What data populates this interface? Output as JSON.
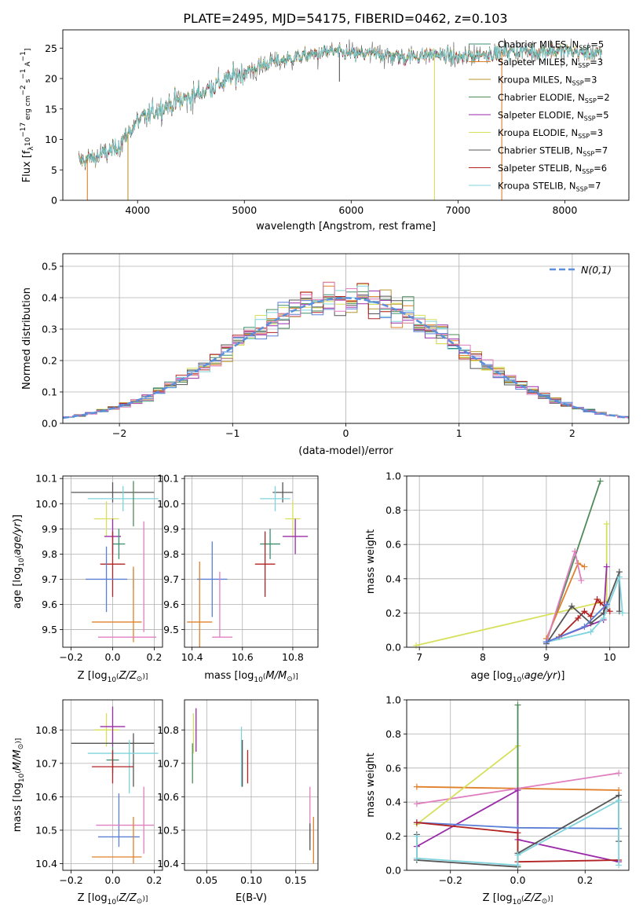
{
  "figure": {
    "title": "PLATE=2495, MJD=54175, FIBERID=0462, z=0.103"
  },
  "colors": {
    "Chabrier MILES": "#3b8f6e",
    "Salpeter MILES": "#e0802a",
    "Kroupa MILES": "#b8962e",
    "Chabrier ELODIE": "#4f8a5a",
    "Salpeter ELODIE": "#9a2aa8",
    "Kroupa ELODIE": "#d6e05a",
    "Chabrier STELIB": "#555555",
    "Salpeter STELIB": "#b22222",
    "Kroupa STELIB": "#7fd3dc",
    "royal": "#5b7fd6",
    "pink": "#e07fc0",
    "gaussian": "#5b8fdc"
  },
  "legend_models": [
    {
      "name": "Chabrier MILES",
      "nssp": "5"
    },
    {
      "name": "Salpeter MILES",
      "nssp": "3"
    },
    {
      "name": "Kroupa MILES",
      "nssp": "3"
    },
    {
      "name": "Chabrier ELODIE",
      "nssp": "2"
    },
    {
      "name": "Salpeter ELODIE",
      "nssp": "5"
    },
    {
      "name": "Kroupa ELODIE",
      "nssp": "3"
    },
    {
      "name": "Chabrier STELIB",
      "nssp": "7"
    },
    {
      "name": "Salpeter STELIB",
      "nssp": "6"
    },
    {
      "name": "Kroupa STELIB",
      "nssp": "7"
    }
  ],
  "chart_data": [
    {
      "id": "spectrum",
      "type": "line",
      "xlabel": "wavelength [Angstrom, rest frame]",
      "ylabel": "Flux [f_λ 10^-17 erg cm^-2 s^-1 A^-1]",
      "xlim": [
        3300,
        8600
      ],
      "ylim": [
        0,
        28
      ],
      "xticks": [
        4000,
        5000,
        6000,
        7000,
        8000
      ],
      "yticks": [
        0,
        5,
        10,
        15,
        20,
        25
      ],
      "grid": false,
      "legend": "upper right",
      "continuum": [
        [
          3450,
          6.5
        ],
        [
          3600,
          7.0
        ],
        [
          3800,
          8.5
        ],
        [
          4000,
          13
        ],
        [
          4200,
          15
        ],
        [
          4500,
          17
        ],
        [
          4800,
          19.5
        ],
        [
          5000,
          21
        ],
        [
          5200,
          22.5
        ],
        [
          5500,
          23.5
        ],
        [
          5800,
          24.5
        ],
        [
          6000,
          24
        ],
        [
          6300,
          24
        ],
        [
          6500,
          23.5
        ],
        [
          6800,
          24
        ],
        [
          7000,
          23.5
        ],
        [
          7500,
          24.5
        ],
        [
          8000,
          24.5
        ],
        [
          8350,
          24
        ]
      ],
      "dips": [
        [
          3530,
          0
        ],
        [
          3910,
          0
        ],
        [
          5890,
          19.5
        ],
        [
          6780,
          0
        ],
        [
          7410,
          0
        ]
      ]
    },
    {
      "id": "residual_hist",
      "type": "line",
      "xlabel": "(data-model)/error",
      "ylabel": "Normed distribution",
      "xlim": [
        -2.5,
        2.5
      ],
      "ylim": [
        0,
        0.54
      ],
      "xticks": [
        -2,
        -1,
        0,
        1,
        2
      ],
      "yticks": [
        0.0,
        0.1,
        0.2,
        0.3,
        0.4,
        0.5
      ],
      "grid": true,
      "legend_label": "N(0,1)",
      "legend": "upper right"
    },
    {
      "id": "age_vs_Z",
      "type": "scatter",
      "xlabel": "Z [log10(Z/Z⊙)]",
      "ylabel": "age [log10(age/yr)]",
      "xlim": [
        -0.24,
        0.24
      ],
      "ylim": [
        9.43,
        10.11
      ],
      "xticks": [
        -0.2,
        0.0,
        0.2
      ],
      "yticks": [
        9.5,
        9.6,
        9.7,
        9.8,
        9.9,
        10.0,
        10.1
      ],
      "grid": true,
      "points": [
        {
          "model": "Chabrier STELIB",
          "x": 0.0,
          "xerr": 0.2,
          "y": 10.045,
          "yerr": 0.04
        },
        {
          "model": "Kroupa STELIB",
          "x": 0.05,
          "xerr": 0.17,
          "y": 10.02,
          "yerr": 0.05
        },
        {
          "model": "Chabrier ELODIE",
          "x": 0.1,
          "xerr": 0.0,
          "y": 10.0,
          "yerr": 0.09
        },
        {
          "model": "Kroupa ELODIE",
          "x": -0.03,
          "xerr": 0.06,
          "y": 9.94,
          "yerr": 0.07
        },
        {
          "model": "Salpeter ELODIE",
          "x": 0.0,
          "xerr": 0.04,
          "y": 9.87,
          "yerr": 0.07
        },
        {
          "model": "Chabrier MILES",
          "x": 0.03,
          "xerr": 0.03,
          "y": 9.84,
          "yerr": 0.06
        },
        {
          "model": "Salpeter STELIB",
          "x": 0.0,
          "xerr": 0.06,
          "y": 9.76,
          "yerr": 0.13
        },
        {
          "model": "royal",
          "x": -0.03,
          "xerr": 0.1,
          "y": 9.7,
          "yerr": 0.13
        },
        {
          "model": "Kroupa STELIB",
          "x": 0.1,
          "xerr": 0.0,
          "y": 9.7,
          "yerr": 0.04
        },
        {
          "model": "pink",
          "x": 0.15,
          "xerr": 0.0,
          "y": 9.71,
          "yerr": 0.22
        },
        {
          "model": "Salpeter MILES",
          "x": 0.02,
          "xerr": 0.12,
          "y": 9.53,
          "yerr": 0.0
        },
        {
          "model": "Salpeter MILES",
          "x": 0.1,
          "xerr": 0.0,
          "y": 9.6,
          "yerr": 0.15
        },
        {
          "model": "pink",
          "x": 0.07,
          "xerr": 0.14,
          "y": 9.47,
          "yerr": 0.0
        }
      ]
    },
    {
      "id": "age_vs_mass",
      "type": "scatter",
      "xlabel": "mass [log10(M/M⊙)]",
      "ylabel": "",
      "xlim": [
        10.37,
        10.9
      ],
      "ylim": [
        9.43,
        10.11
      ],
      "xticks": [
        10.4,
        10.6,
        10.8
      ],
      "yticks": [
        9.5,
        9.6,
        9.7,
        9.8,
        9.9,
        10.0,
        10.1
      ],
      "grid": true,
      "points": [
        {
          "model": "Chabrier STELIB",
          "x": 10.76,
          "xerr": 0.04,
          "y": 10.045,
          "yerr": 0.04
        },
        {
          "model": "Kroupa STELIB",
          "x": 10.73,
          "xerr": 0.06,
          "y": 10.02,
          "yerr": 0.05
        },
        {
          "model": "Kroupa ELODIE",
          "x": 10.8,
          "xerr": 0.03,
          "y": 9.94,
          "yerr": 0.07
        },
        {
          "model": "Salpeter ELODIE",
          "x": 10.81,
          "xerr": 0.05,
          "y": 9.87,
          "yerr": 0.07
        },
        {
          "model": "Chabrier MILES",
          "x": 10.71,
          "xerr": 0.04,
          "y": 9.84,
          "yerr": 0.06
        },
        {
          "model": "Salpeter STELIB",
          "x": 10.69,
          "xerr": 0.04,
          "y": 9.76,
          "yerr": 0.13
        },
        {
          "model": "royal",
          "x": 10.48,
          "xerr": 0.06,
          "y": 9.7,
          "yerr": 0.15
        },
        {
          "model": "pink",
          "x": 10.51,
          "xerr": 0.0,
          "y": 9.6,
          "yerr": 0.13
        },
        {
          "model": "Salpeter MILES",
          "x": 10.43,
          "xerr": 0.05,
          "y": 9.53,
          "yerr": 0.0
        },
        {
          "model": "Salpeter MILES",
          "x": 10.43,
          "xerr": 0.0,
          "y": 9.6,
          "yerr": 0.17
        },
        {
          "model": "pink",
          "x": 10.52,
          "xerr": 0.04,
          "y": 9.47,
          "yerr": 0.0
        }
      ]
    },
    {
      "id": "massweight_vs_age",
      "type": "line",
      "xlabel": "age [log10(age/yr)]",
      "ylabel": "mass weight",
      "xlim": [
        6.8,
        10.3
      ],
      "ylim": [
        0,
        1.0
      ],
      "xticks": [
        7,
        8,
        9,
        10
      ],
      "yticks": [
        0.0,
        0.2,
        0.4,
        0.6,
        0.8,
        1.0
      ],
      "grid": true,
      "series": [
        {
          "model": "Kroupa ELODIE",
          "x": [
            6.95,
            9.95,
            9.95
          ],
          "y": [
            0.01,
            0.27,
            0.72
          ]
        },
        {
          "model": "Chabrier ELODIE",
          "x": [
            9.0,
            9.85,
            9.0
          ],
          "y": [
            0.03,
            0.97,
            0.03
          ]
        },
        {
          "model": "Salpeter MILES",
          "x": [
            9.0,
            9.5,
            9.6
          ],
          "y": [
            0.05,
            0.49,
            0.47
          ]
        },
        {
          "model": "pink",
          "x": [
            9.0,
            9.45,
            9.55
          ],
          "y": [
            0.03,
            0.56,
            0.39
          ]
        },
        {
          "model": "Salpeter ELODIE",
          "x": [
            9.0,
            9.9,
            9.95
          ],
          "y": [
            0.03,
            0.16,
            0.47
          ]
        },
        {
          "model": "Salpeter STELIB",
          "x": [
            9.2,
            9.5,
            9.6,
            9.7,
            9.8,
            9.85,
            10.0
          ],
          "y": [
            0.06,
            0.17,
            0.21,
            0.18,
            0.28,
            0.26,
            0.21
          ]
        },
        {
          "model": "Chabrier STELIB",
          "x": [
            9.0,
            9.4,
            9.7,
            9.9,
            10.15,
            10.15
          ],
          "y": [
            0.02,
            0.24,
            0.14,
            0.2,
            0.44,
            0.21
          ]
        },
        {
          "model": "Kroupa STELIB",
          "x": [
            9.0,
            9.7,
            9.9,
            10.15,
            10.2
          ],
          "y": [
            0.03,
            0.09,
            0.17,
            0.41,
            0.2
          ]
        },
        {
          "model": "royal",
          "x": [
            9.0,
            9.6,
            9.95
          ],
          "y": [
            0.03,
            0.12,
            0.25
          ]
        }
      ]
    },
    {
      "id": "mass_vs_Z",
      "type": "scatter",
      "xlabel": "Z [log10(Z/Z⊙)]",
      "ylabel": "mass [log10(M/M⊙)]",
      "xlim": [
        -0.24,
        0.24
      ],
      "ylim": [
        10.38,
        10.89
      ],
      "xticks": [
        -0.2,
        0.0,
        0.2
      ],
      "yticks": [
        10.4,
        10.5,
        10.6,
        10.7,
        10.8
      ],
      "grid": true,
      "points": [
        {
          "model": "Kroupa ELODIE",
          "x": -0.03,
          "xerr": 0.06,
          "y": 10.8,
          "yerr": 0.05
        },
        {
          "model": "Salpeter ELODIE",
          "x": 0.0,
          "xerr": 0.06,
          "y": 10.81,
          "yerr": 0.06
        },
        {
          "model": "Chabrier STELIB",
          "x": 0.0,
          "xerr": 0.2,
          "y": 10.76,
          "yerr": 0.0
        },
        {
          "model": "Chabrier STELIB",
          "x": 0.1,
          "xerr": 0.0,
          "y": 10.71,
          "yerr": 0.08
        },
        {
          "model": "Kroupa STELIB",
          "x": 0.05,
          "xerr": 0.17,
          "y": 10.73,
          "yerr": 0.0
        },
        {
          "model": "Kroupa STELIB",
          "x": 0.08,
          "xerr": 0.0,
          "y": 10.69,
          "yerr": 0.08
        },
        {
          "model": "Chabrier MILES",
          "x": 0.0,
          "xerr": 0.03,
          "y": 10.71,
          "yerr": 0.04
        },
        {
          "model": "Salpeter STELIB",
          "x": 0.0,
          "xerr": 0.1,
          "y": 10.69,
          "yerr": 0.05
        },
        {
          "model": "royal",
          "x": 0.03,
          "xerr": 0.1,
          "y": 10.48,
          "yerr": 0.0
        },
        {
          "model": "royal",
          "x": 0.03,
          "xerr": 0.0,
          "y": 10.53,
          "yerr": 0.08
        },
        {
          "model": "pink",
          "x": 0.06,
          "xerr": 0.14,
          "y": 10.515,
          "yerr": 0.0
        },
        {
          "model": "pink",
          "x": 0.15,
          "xerr": 0.0,
          "y": 10.53,
          "yerr": 0.1
        },
        {
          "model": "Salpeter MILES",
          "x": 0.02,
          "xerr": 0.12,
          "y": 10.42,
          "yerr": 0.0
        },
        {
          "model": "Salpeter MILES",
          "x": 0.1,
          "xerr": 0.0,
          "y": 10.47,
          "yerr": 0.07
        }
      ]
    },
    {
      "id": "mass_vs_EBV",
      "type": "scatter",
      "xlabel": "E(B-V)",
      "ylabel": "",
      "xlim": [
        0.025,
        0.175
      ],
      "ylim": [
        10.38,
        10.89
      ],
      "xticks": [
        0.05,
        0.1,
        0.15
      ],
      "yticks": [
        10.4,
        10.5,
        10.6,
        10.7,
        10.8
      ],
      "grid": true,
      "points": [
        {
          "model": "Kroupa ELODIE",
          "x": 0.035,
          "xerr": 0.0,
          "y": 10.79,
          "yerr": 0.06
        },
        {
          "model": "Salpeter ELODIE",
          "x": 0.038,
          "xerr": 0.0,
          "y": 10.8,
          "yerr": 0.065
        },
        {
          "model": "Chabrier ELODIE",
          "x": 0.034,
          "xerr": 0.0,
          "y": 10.7,
          "yerr": 0.06
        },
        {
          "model": "Kroupa STELIB",
          "x": 0.089,
          "xerr": 0.0,
          "y": 10.72,
          "yerr": 0.09
        },
        {
          "model": "Chabrier STELIB",
          "x": 0.09,
          "xerr": 0.0,
          "y": 10.7,
          "yerr": 0.07
        },
        {
          "model": "Salpeter STELIB",
          "x": 0.096,
          "xerr": 0.0,
          "y": 10.69,
          "yerr": 0.05
        },
        {
          "model": "pink",
          "x": 0.166,
          "xerr": 0.0,
          "y": 10.55,
          "yerr": 0.08
        },
        {
          "model": "Chabrier STELIB",
          "x": 0.166,
          "xerr": 0.0,
          "y": 10.48,
          "yerr": 0.04
        },
        {
          "model": "Salpeter MILES",
          "x": 0.17,
          "xerr": 0.0,
          "y": 10.47,
          "yerr": 0.07
        }
      ]
    },
    {
      "id": "massweight_vs_Z",
      "type": "line",
      "xlabel": "Z [log10(Z/Z⊙)]",
      "ylabel": "mass weight",
      "xlim": [
        -0.33,
        0.33
      ],
      "ylim": [
        0,
        1.0
      ],
      "xticks": [
        -0.2,
        0.0,
        0.2
      ],
      "yticks": [
        0.0,
        0.2,
        0.4,
        0.6,
        0.8,
        1.0
      ],
      "grid": true,
      "series": [
        {
          "model": "Salpeter MILES",
          "x": [
            -0.3,
            0.0,
            0.3
          ],
          "y": [
            0.49,
            0.48,
            0.47
          ]
        },
        {
          "model": "pink",
          "x": [
            -0.3,
            0.3
          ],
          "y": [
            0.39,
            0.57
          ]
        },
        {
          "model": "Kroupa ELODIE",
          "x": [
            -0.3,
            0.0,
            0.0
          ],
          "y": [
            0.27,
            0.73,
            0.03
          ]
        },
        {
          "model": "Chabrier ELODIE",
          "x": [
            0.0,
            0.0
          ],
          "y": [
            0.97,
            0.03
          ]
        },
        {
          "model": "Salpeter ELODIE",
          "x": [
            -0.3,
            0.0,
            0.0,
            0.3
          ],
          "y": [
            0.14,
            0.47,
            0.18,
            0.05
          ]
        },
        {
          "model": "royal",
          "x": [
            -0.3,
            0.0,
            0.3
          ],
          "y": [
            0.28,
            0.25,
            0.245
          ]
        },
        {
          "model": "Salpeter STELIB",
          "x": [
            -0.3,
            0.0,
            0.0,
            0.3
          ],
          "y": [
            0.28,
            0.22,
            0.05,
            0.06
          ]
        },
        {
          "model": "Chabrier STELIB",
          "x": [
            -0.3,
            -0.3,
            0.0,
            0.0,
            0.3,
            0.3
          ],
          "y": [
            0.21,
            0.06,
            0.02,
            0.1,
            0.44,
            0.17
          ]
        },
        {
          "model": "Kroupa STELIB",
          "x": [
            -0.3,
            -0.3,
            0.0,
            0.0,
            0.3,
            0.3
          ],
          "y": [
            0.2,
            0.07,
            0.03,
            0.09,
            0.41,
            0.03
          ]
        }
      ]
    }
  ]
}
